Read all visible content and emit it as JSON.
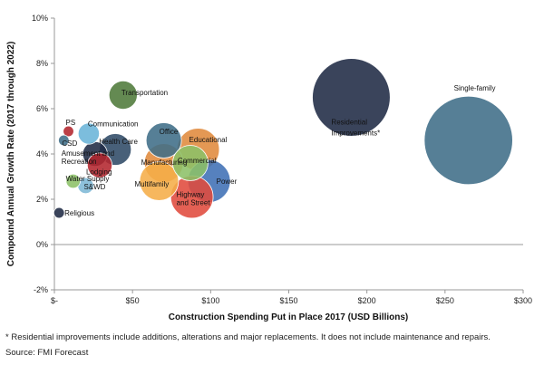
{
  "chart_data": {
    "type": "scatter",
    "xlabel": "Construction Spending Put in Place 2017 (USD Billions)",
    "ylabel": "Compound Annual Growth Rate (2017 through 2022)",
    "xlim": [
      0,
      300
    ],
    "ylim": [
      -2,
      10
    ],
    "xticks": [
      0,
      50,
      100,
      150,
      200,
      250,
      300
    ],
    "xtick_labels": [
      "$-",
      "$50",
      "$100",
      "$150",
      "$200",
      "$250",
      "$300"
    ],
    "yticks": [
      -2,
      0,
      2,
      4,
      6,
      8,
      10
    ],
    "ytick_labels": [
      "-2%",
      "0%",
      "2%",
      "4%",
      "6%",
      "8%",
      "10%"
    ],
    "grid": false,
    "points": [
      {
        "label": "Religious",
        "x": 3,
        "y": 1.4,
        "size": 3,
        "color": "#1f2a44"
      },
      {
        "label": "PS",
        "x": 9,
        "y": 5.0,
        "size": 3,
        "color": "#b3262d"
      },
      {
        "label": "CSD",
        "x": 6,
        "y": 4.6,
        "size": 3,
        "color": "#3f6d87"
      },
      {
        "label": "Communication",
        "x": 22,
        "y": 4.9,
        "size": 6,
        "color": "#6ab4d8"
      },
      {
        "label": "Water Supply",
        "x": 12,
        "y": 2.8,
        "size": 4,
        "color": "#8cc068"
      },
      {
        "label": "S&WD",
        "x": 20,
        "y": 2.6,
        "size": 4.5,
        "color": "#7eb8d6"
      },
      {
        "label": "Amusement and Recreation",
        "x": 26,
        "y": 4.0,
        "size": 7,
        "color": "#1f2a44"
      },
      {
        "label": "Lodging",
        "x": 29,
        "y": 3.5,
        "size": 7,
        "color": "#b3262d"
      },
      {
        "label": "Health Care",
        "x": 39,
        "y": 4.2,
        "size": 9,
        "color": "#2f4a66"
      },
      {
        "label": "Transportation",
        "x": 44,
        "y": 6.6,
        "size": 8,
        "color": "#4e7a3a"
      },
      {
        "label": "Office",
        "x": 70,
        "y": 4.6,
        "size": 10,
        "color": "#3f6d87"
      },
      {
        "label": "Manufacturing",
        "x": 70,
        "y": 3.6,
        "size": 11,
        "color": "#e08a3c"
      },
      {
        "label": "Commercial",
        "x": 87,
        "y": 3.6,
        "size": 10,
        "color": "#8cc068"
      },
      {
        "label": "Educational",
        "x": 92,
        "y": 4.2,
        "size": 12,
        "color": "#e08a3c"
      },
      {
        "label": "Multifamily",
        "x": 67,
        "y": 2.8,
        "size": 11,
        "color": "#f5ad48"
      },
      {
        "label": "Power",
        "x": 99,
        "y": 2.8,
        "size": 12,
        "color": "#3f6fb5"
      },
      {
        "label": "Highway and Street",
        "x": 88,
        "y": 2.1,
        "size": 12,
        "color": "#e04a3c"
      },
      {
        "label": "Residential Improvements*",
        "x": 190,
        "y": 6.5,
        "size": 22,
        "color": "#1f2a44"
      },
      {
        "label": "Single-family",
        "x": 265,
        "y": 4.6,
        "size": 25,
        "color": "#3f6d87"
      }
    ]
  },
  "footnote": "* Residential improvements include additions, alterations and major replacements. It does not include maintenance and repairs.",
  "source": "Source: FMI Forecast"
}
